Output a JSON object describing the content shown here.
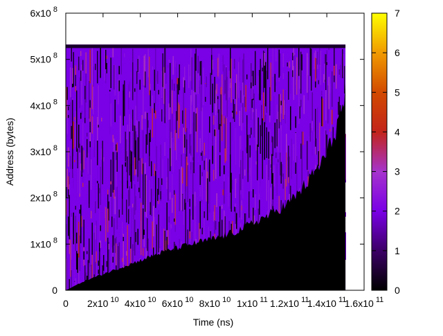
{
  "chart_data": {
    "type": "heatmap",
    "title": "",
    "xlabel": "Time (ns)",
    "ylabel": "Address (bytes)",
    "x_ticks": [
      {
        "value": 0,
        "mantissa": "0",
        "exp": ""
      },
      {
        "value": 20000000000,
        "mantissa": "2x10",
        "exp": "10"
      },
      {
        "value": 40000000000,
        "mantissa": "4x10",
        "exp": "10"
      },
      {
        "value": 60000000000,
        "mantissa": "6x10",
        "exp": "10"
      },
      {
        "value": 80000000000,
        "mantissa": "8x10",
        "exp": "10"
      },
      {
        "value": 100000000000,
        "mantissa": "1x10",
        "exp": "11"
      },
      {
        "value": 120000000000,
        "mantissa": "1.2x10",
        "exp": "11"
      },
      {
        "value": 140000000000,
        "mantissa": "1.4x10",
        "exp": "11"
      },
      {
        "value": 160000000000,
        "mantissa": "1.6x10",
        "exp": "11"
      }
    ],
    "y_ticks": [
      {
        "value": 0,
        "mantissa": "0",
        "exp": ""
      },
      {
        "value": 100000000,
        "mantissa": "1x10",
        "exp": "8"
      },
      {
        "value": 200000000,
        "mantissa": "2x10",
        "exp": "8"
      },
      {
        "value": 300000000,
        "mantissa": "3x10",
        "exp": "8"
      },
      {
        "value": 400000000,
        "mantissa": "4x10",
        "exp": "8"
      },
      {
        "value": 500000000,
        "mantissa": "5x10",
        "exp": "8"
      },
      {
        "value": 600000000,
        "mantissa": "6x10",
        "exp": "8"
      }
    ],
    "xlim": [
      0,
      160000000000
    ],
    "ylim": [
      0,
      600000000
    ],
    "colorbar": {
      "range": [
        0,
        7
      ],
      "ticks": [
        "0",
        "1",
        "2",
        "3",
        "4",
        "5",
        "6",
        "7"
      ],
      "colormap": [
        "#000000",
        "#3c0066",
        "#7a00e6",
        "#a633cc",
        "#c2241a",
        "#d24a00",
        "#f09a00",
        "#ffff00"
      ]
    },
    "data_extent": {
      "x_max": 150000000000,
      "address_max": 532000000,
      "dominant_value": 2,
      "value_range": [
        0,
        4
      ]
    },
    "address_floor": [
      {
        "x": 0,
        "y": 0
      },
      {
        "x": 10000000000,
        "y": 20000000
      },
      {
        "x": 20000000000,
        "y": 35000000
      },
      {
        "x": 30000000000,
        "y": 50000000
      },
      {
        "x": 40000000000,
        "y": 65000000
      },
      {
        "x": 50000000000,
        "y": 80000000
      },
      {
        "x": 60000000000,
        "y": 92000000
      },
      {
        "x": 70000000000,
        "y": 103000000
      },
      {
        "x": 80000000000,
        "y": 112000000
      },
      {
        "x": 90000000000,
        "y": 125000000
      },
      {
        "x": 100000000000,
        "y": 145000000
      },
      {
        "x": 110000000000,
        "y": 165000000
      },
      {
        "x": 120000000000,
        "y": 190000000
      },
      {
        "x": 130000000000,
        "y": 235000000
      },
      {
        "x": 140000000000,
        "y": 295000000
      },
      {
        "x": 145000000000,
        "y": 350000000
      },
      {
        "x": 150000000000,
        "y": 420000000
      }
    ],
    "grid": false,
    "legend": "none"
  }
}
